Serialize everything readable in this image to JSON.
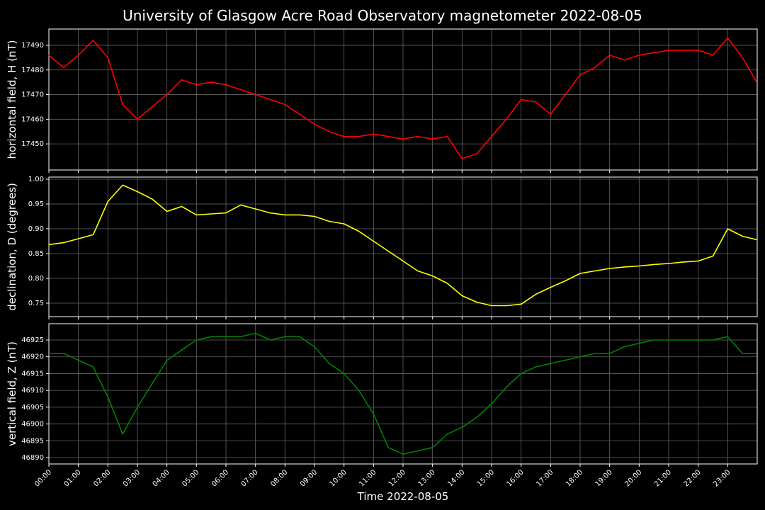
{
  "title": "University of Glasgow Acre Road Observatory magnetometer 2022-08-05",
  "xlabel": "Time 2022-08-05",
  "chart_data": [
    {
      "type": "line",
      "ylabel": "horizontal field, H (nT)",
      "grid": true,
      "color": "#ff0000",
      "xlim": [
        "00:00",
        "24:00"
      ],
      "ylim": [
        17439.4,
        17496.6
      ],
      "yticks": [
        17450,
        17460,
        17470,
        17480,
        17490
      ],
      "x": [
        "00:00",
        "00:30",
        "01:00",
        "01:30",
        "02:00",
        "02:30",
        "03:00",
        "03:30",
        "04:00",
        "04:30",
        "05:00",
        "05:30",
        "06:00",
        "06:30",
        "07:00",
        "07:30",
        "08:00",
        "08:30",
        "09:00",
        "09:30",
        "10:00",
        "10:30",
        "11:00",
        "11:30",
        "12:00",
        "12:30",
        "13:00",
        "13:30",
        "14:00",
        "14:30",
        "15:00",
        "15:30",
        "16:00",
        "16:30",
        "17:00",
        "17:30",
        "18:00",
        "18:30",
        "19:00",
        "19:30",
        "20:00",
        "20:30",
        "21:00",
        "21:30",
        "22:00",
        "22:30",
        "23:00",
        "23:30",
        "23:59"
      ],
      "values": [
        17486,
        17481,
        17486,
        17492,
        17485,
        17466,
        17460,
        17465,
        17470,
        17476,
        17474,
        17475,
        17474,
        17472,
        17470,
        17468,
        17466,
        17462,
        17458,
        17455,
        17453,
        17453,
        17454,
        17453,
        17452,
        17453,
        17452,
        17453,
        17444,
        17446,
        17453,
        17460,
        17468,
        17467,
        17462,
        17470,
        17478,
        17481,
        17486,
        17484,
        17486,
        17487,
        17488,
        17488,
        17488,
        17486,
        17493,
        17485,
        17475
      ]
    },
    {
      "type": "line",
      "ylabel": "declination, D (degrees)",
      "grid": true,
      "color": "#ffff00",
      "xlim": [
        "00:00",
        "24:00"
      ],
      "ylim": [
        0.7229,
        1.0043
      ],
      "yticks": [
        {
          "value": 0.75,
          "label": "0.75"
        },
        {
          "value": 0.8,
          "label": "0.80"
        },
        {
          "value": 0.85,
          "label": "0.85"
        },
        {
          "value": 0.9,
          "label": "0.90"
        },
        {
          "value": 0.95,
          "label": "0.95"
        },
        {
          "value": 1.0,
          "label": "1.00"
        }
      ],
      "x": [
        "00:00",
        "00:30",
        "01:00",
        "01:30",
        "02:00",
        "02:30",
        "03:00",
        "03:30",
        "04:00",
        "04:30",
        "05:00",
        "05:30",
        "06:00",
        "06:30",
        "07:00",
        "07:30",
        "08:00",
        "08:30",
        "09:00",
        "09:30",
        "10:00",
        "10:30",
        "11:00",
        "11:30",
        "12:00",
        "12:30",
        "13:00",
        "13:30",
        "14:00",
        "14:30",
        "15:00",
        "15:30",
        "16:00",
        "16:30",
        "17:00",
        "17:30",
        "18:00",
        "18:30",
        "19:00",
        "19:30",
        "20:00",
        "20:30",
        "21:00",
        "21:30",
        "22:00",
        "22:30",
        "23:00",
        "23:30",
        "23:59"
      ],
      "values": [
        0.868,
        0.872,
        0.88,
        0.888,
        0.955,
        0.988,
        0.975,
        0.96,
        0.935,
        0.945,
        0.928,
        0.93,
        0.932,
        0.948,
        0.94,
        0.932,
        0.928,
        0.928,
        0.925,
        0.915,
        0.91,
        0.895,
        0.875,
        0.855,
        0.835,
        0.815,
        0.805,
        0.79,
        0.765,
        0.752,
        0.745,
        0.745,
        0.748,
        0.768,
        0.782,
        0.795,
        0.81,
        0.815,
        0.82,
        0.823,
        0.825,
        0.828,
        0.83,
        0.833,
        0.835,
        0.845,
        0.9,
        0.885,
        0.878
      ]
    },
    {
      "type": "line",
      "ylabel": "vertical field, Z (nT)",
      "grid": true,
      "color": "#008000",
      "xlim": [
        "00:00",
        "24:00"
      ],
      "ylim": [
        46888.1,
        46929.85
      ],
      "yticks": [
        46890,
        46895,
        46900,
        46905,
        46910,
        46915,
        46920,
        46925
      ],
      "xticks": [
        "00:00",
        "01:00",
        "02:00",
        "03:00",
        "04:00",
        "05:00",
        "06:00",
        "07:00",
        "08:00",
        "09:00",
        "10:00",
        "11:00",
        "12:00",
        "13:00",
        "14:00",
        "15:00",
        "16:00",
        "17:00",
        "18:00",
        "19:00",
        "20:00",
        "21:00",
        "22:00",
        "23:00"
      ],
      "x": [
        "00:00",
        "00:30",
        "01:00",
        "01:30",
        "02:00",
        "02:30",
        "03:00",
        "03:30",
        "04:00",
        "04:30",
        "05:00",
        "05:30",
        "06:00",
        "06:30",
        "07:00",
        "07:30",
        "08:00",
        "08:30",
        "09:00",
        "09:30",
        "10:00",
        "10:30",
        "11:00",
        "11:30",
        "12:00",
        "12:30",
        "13:00",
        "13:30",
        "14:00",
        "14:30",
        "15:00",
        "15:30",
        "16:00",
        "16:30",
        "17:00",
        "17:30",
        "18:00",
        "18:30",
        "19:00",
        "19:30",
        "20:00",
        "20:30",
        "21:00",
        "21:30",
        "22:00",
        "22:30",
        "23:00",
        "23:30",
        "23:59"
      ],
      "values": [
        46921,
        46921,
        46919,
        46917,
        46908,
        46897,
        46905,
        46912,
        46919,
        46922,
        46925,
        46926,
        46926,
        46926,
        46927,
        46925,
        46926,
        46926,
        46923,
        46918,
        46915,
        46910,
        46903,
        46893,
        46891,
        46892,
        46893,
        46897,
        46899,
        46902,
        46906,
        46911,
        46915,
        46917,
        46918,
        46919,
        46920,
        46921,
        46921,
        46923,
        46924,
        46925,
        46925,
        46925,
        46925,
        46925,
        46926,
        46921,
        46921
      ]
    }
  ]
}
